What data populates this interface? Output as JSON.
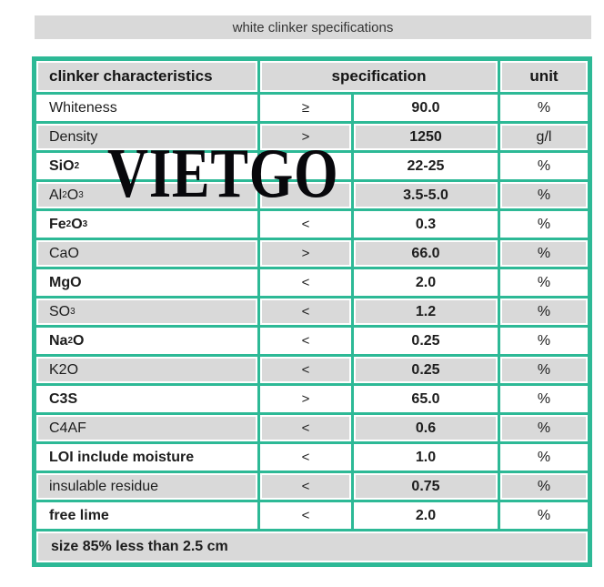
{
  "title": "white clinker specifications",
  "watermark": "VIETGO",
  "colors": {
    "border_teal": "#2db996",
    "shaded_cell_gray": "#d9d9d9",
    "watermark_black": "#08080c"
  },
  "table": {
    "headers": {
      "characteristics": "clinker characteristics",
      "specification": "specification",
      "unit": "unit"
    },
    "rows": [
      {
        "characteristic": "Whiteness",
        "bold": false,
        "operator": "≥",
        "value": "90.0",
        "unit": "%"
      },
      {
        "characteristic": "Density",
        "bold": false,
        "operator": ">",
        "value": "1250",
        "unit": "g/l"
      },
      {
        "characteristic": "SiO_2",
        "bold": true,
        "operator": "",
        "value": "22-25",
        "unit": "%"
      },
      {
        "characteristic": "Al_2O_3",
        "bold": false,
        "operator": "",
        "value": "3.5-5.0",
        "unit": "%"
      },
      {
        "characteristic": "Fe_2O_3",
        "bold": true,
        "operator": "<",
        "value": "0.3",
        "unit": "%"
      },
      {
        "characteristic": "CaO",
        "bold": false,
        "operator": ">",
        "value": "66.0",
        "unit": "%"
      },
      {
        "characteristic": "MgO",
        "bold": true,
        "operator": "<",
        "value": "2.0",
        "unit": "%"
      },
      {
        "characteristic": "SO_3",
        "bold": false,
        "operator": "<",
        "value": "1.2",
        "unit": "%"
      },
      {
        "characteristic": "Na_2O",
        "bold": true,
        "operator": "<",
        "value": "0.25",
        "unit": "%"
      },
      {
        "characteristic": "K2O",
        "bold": false,
        "operator": "<",
        "value": "0.25",
        "unit": "%"
      },
      {
        "characteristic": "C3S",
        "bold": true,
        "operator": ">",
        "value": "65.0",
        "unit": "%"
      },
      {
        "characteristic": "C4AF",
        "bold": false,
        "operator": "<",
        "value": "0.6",
        "unit": "%"
      },
      {
        "characteristic": "LOI include moisture",
        "bold": true,
        "operator": "<",
        "value": "1.0",
        "unit": "%"
      },
      {
        "characteristic": "insulable residue",
        "bold": false,
        "operator": "<",
        "value": "0.75",
        "unit": "%"
      },
      {
        "characteristic": "free lime",
        "bold": true,
        "operator": "<",
        "value": "2.0",
        "unit": "%"
      }
    ],
    "footer_note": "size 85% less than 2.5 cm"
  }
}
